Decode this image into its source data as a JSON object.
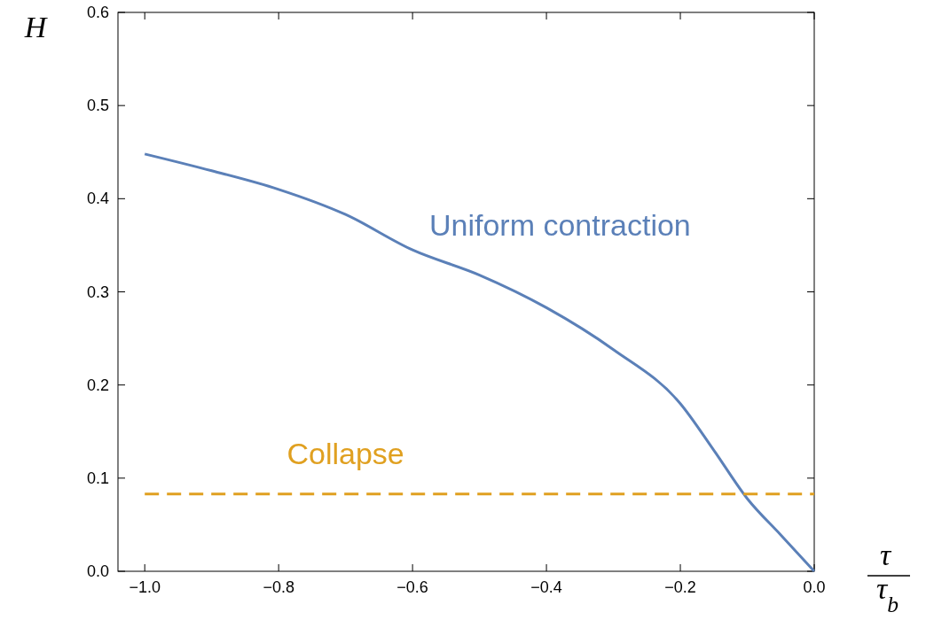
{
  "chart_data": {
    "type": "line",
    "xlabel": "τ/τ$_{b}$",
    "ylabel": "H",
    "xlim": [
      -1.04,
      0
    ],
    "ylim": [
      0,
      0.6
    ],
    "xticks": [
      {
        "value": -1,
        "label": "−1.0"
      },
      {
        "value": -0.8,
        "label": "−0.8"
      },
      {
        "value": -0.6,
        "label": "−0.6"
      },
      {
        "value": -0.4,
        "label": "−0.4"
      },
      {
        "value": -0.2,
        "label": "−0.2"
      },
      {
        "value": 0,
        "label": "0.0"
      }
    ],
    "yticks": [
      {
        "value": 0,
        "label": "0.0"
      },
      {
        "value": 0.1,
        "label": "0.1"
      },
      {
        "value": 0.2,
        "label": "0.2"
      },
      {
        "value": 0.3,
        "label": "0.3"
      },
      {
        "value": 0.4,
        "label": "0.4"
      },
      {
        "value": 0.5,
        "label": "0.5"
      },
      {
        "value": 0.6,
        "label": "0.6"
      }
    ],
    "grid": false,
    "legend": false,
    "series": [
      {
        "name": "Uniform contraction",
        "color": "#5b80b8",
        "line_style": "solid",
        "x": [
          -1,
          -0.9,
          -0.8,
          -0.7,
          -0.6,
          -0.5,
          -0.4,
          -0.3,
          -0.2,
          -0.15,
          -0.1,
          -0.05,
          0
        ],
        "values": [
          0.448,
          0.43,
          0.41,
          0.383,
          0.345,
          0.318,
          0.283,
          0.238,
          0.18,
          0.13,
          0.078,
          0.039,
          0
        ]
      },
      {
        "name": "Collapse",
        "color": "#e0a020",
        "line_style": "dashed",
        "x": [
          -1,
          0
        ],
        "values": [
          0.083,
          0.083
        ]
      }
    ]
  }
}
